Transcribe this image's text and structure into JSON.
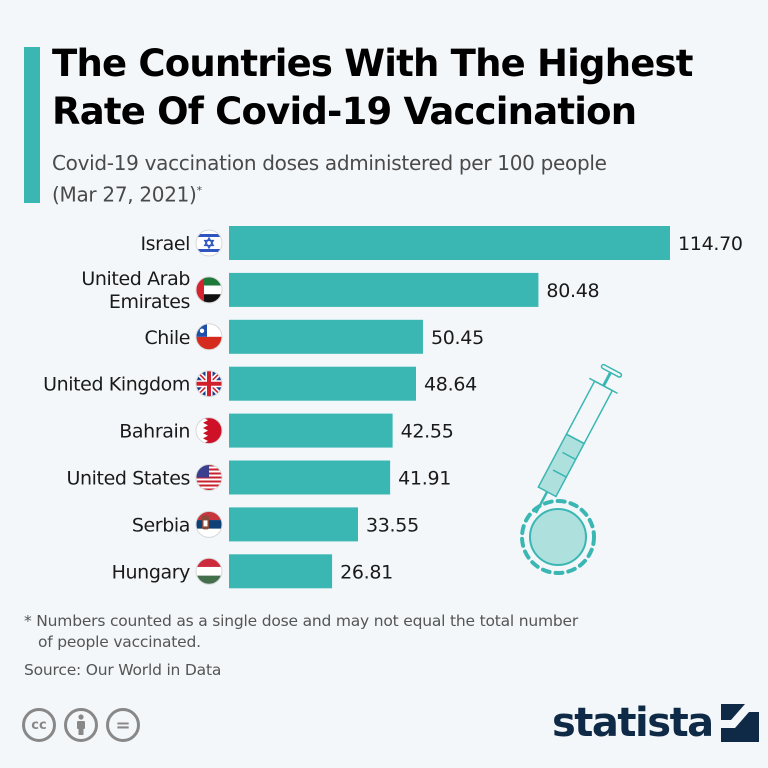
{
  "header": {
    "title_line1": "The Countries With The Highest",
    "title_line2": "Rate Of Covid-19 Vaccination",
    "subtitle_line1": "Covid-19 vaccination doses administered per 100 people",
    "subtitle_line2": "(Mar 27, 2021)",
    "subtitle_marker": "*"
  },
  "colors": {
    "accent": "#3ab7b3",
    "bar": "#3ab7b3",
    "logo": "#0f2a47"
  },
  "chart_data": {
    "type": "bar",
    "orientation": "horizontal",
    "title": "The Countries With The Highest Rate Of Covid-19 Vaccination",
    "subtitle": "Covid-19 vaccination doses administered per 100 people (Mar 27, 2021)*",
    "xlabel": "",
    "ylabel": "",
    "xlim": [
      0,
      114.7
    ],
    "grid": false,
    "categories": [
      {
        "label": [
          "Israel"
        ],
        "flag": "israel-flag-icon"
      },
      {
        "label": [
          "United Arab",
          "Emirates"
        ],
        "flag": "uae-flag-icon"
      },
      {
        "label": [
          "Chile"
        ],
        "flag": "chile-flag-icon"
      },
      {
        "label": [
          "United Kingdom"
        ],
        "flag": "uk-flag-icon"
      },
      {
        "label": [
          "Bahrain"
        ],
        "flag": "bahrain-flag-icon"
      },
      {
        "label": [
          "United States"
        ],
        "flag": "us-flag-icon"
      },
      {
        "label": [
          "Serbia"
        ],
        "flag": "serbia-flag-icon"
      },
      {
        "label": [
          "Hungary"
        ],
        "flag": "hungary-flag-icon"
      }
    ],
    "values": [
      114.7,
      80.48,
      50.45,
      48.64,
      42.55,
      41.91,
      33.55,
      26.81
    ],
    "value_labels": [
      "114.70",
      "80.48",
      "50.45",
      "48.64",
      "42.55",
      "41.91",
      "33.55",
      "26.81"
    ]
  },
  "footer": {
    "footnote_line1": "* Numbers counted as a single dose and may not equal the total number",
    "footnote_line2": "of people vaccinated.",
    "source": "Source: Our World in Data",
    "cc_icons": [
      "cc-icon",
      "attribution-icon",
      "no-derivatives-icon"
    ],
    "cc_label": "cc",
    "nd_label": "=",
    "logo_text": "statista"
  }
}
